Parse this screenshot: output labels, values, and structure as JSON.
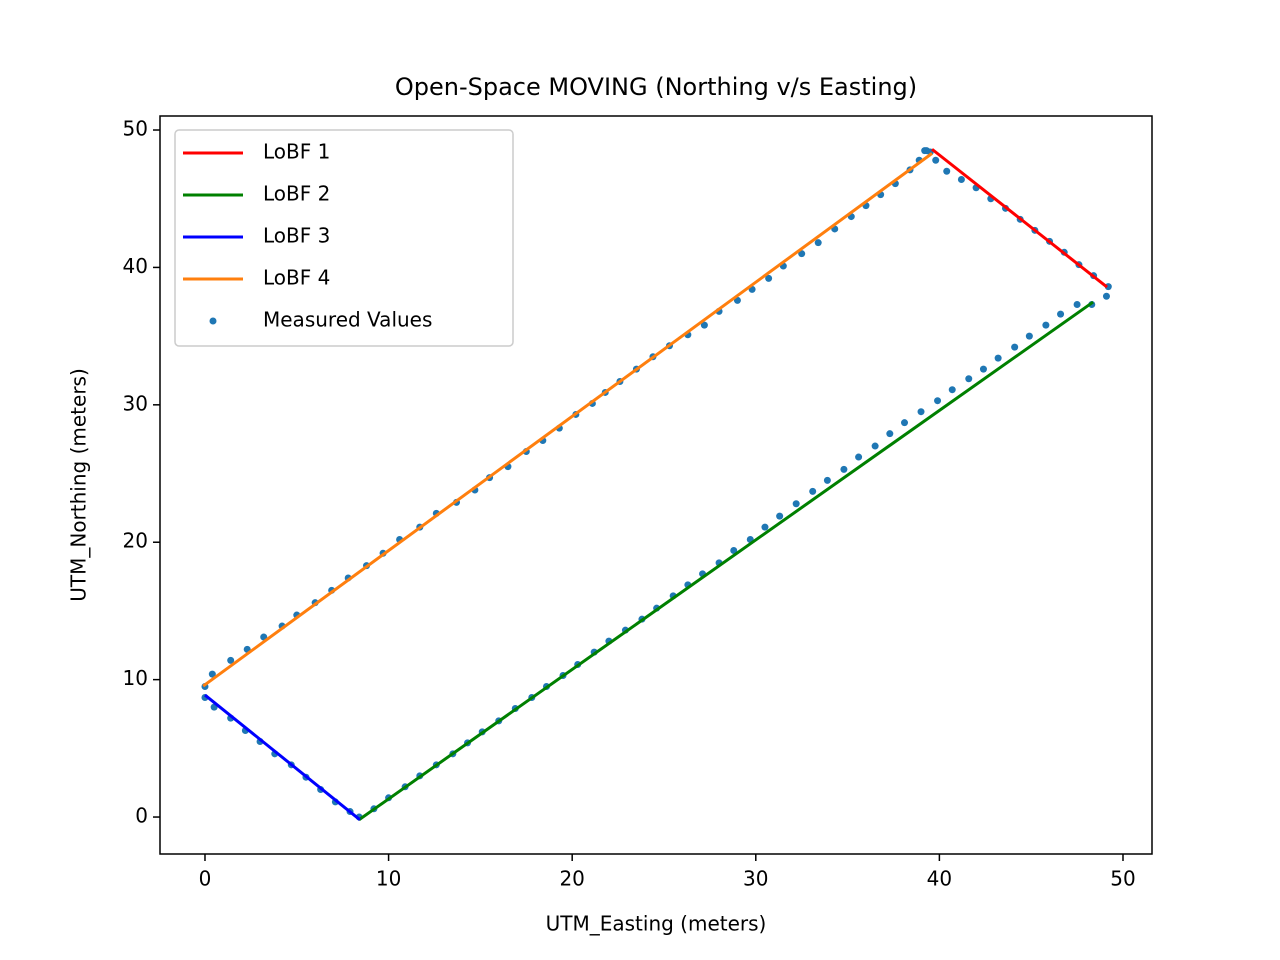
{
  "chart_data": {
    "type": "line",
    "title": "Open-Space MOVING (Northing v/s Easting)",
    "x_label": "UTM_Easting (meters)",
    "y_label": "UTM_Northing (meters)",
    "xlim": [
      -2.45,
      51.58
    ],
    "ylim": [
      -2.69,
      51.02
    ],
    "xticks": [
      0,
      10,
      20,
      30,
      40,
      50
    ],
    "yticks": [
      0,
      10,
      20,
      30,
      40,
      50
    ],
    "legend": "upper left",
    "series": [
      {
        "name": "LoBF 1",
        "type": "line",
        "color": "#ff0000",
        "x": [
          39.6,
          49.13
        ],
        "values": [
          48.6,
          38.57
        ]
      },
      {
        "name": "LoBF 2",
        "type": "line",
        "color": "#008000",
        "x": [
          8.39,
          48.37
        ],
        "values": [
          -0.2,
          37.48
        ]
      },
      {
        "name": "LoBF 3",
        "type": "line",
        "color": "#0000ff",
        "x": [
          0,
          8.44
        ],
        "values": [
          8.88,
          -0.2
        ]
      },
      {
        "name": "LoBF 4",
        "type": "line",
        "color": "#ff7f0e",
        "x": [
          -0.1,
          39.6
        ],
        "values": [
          9.53,
          48.3
        ]
      },
      {
        "name": "Measured Values",
        "type": "scatter",
        "color": "#1f77b4",
        "x": [
          0,
          0.5,
          1.4,
          2.2,
          3.0,
          3.8,
          4.7,
          5.5,
          6.3,
          7.1,
          7.9,
          8.4,
          9.2,
          10.0,
          10.9,
          11.7,
          12.6,
          13.5,
          14.3,
          15.1,
          16.0,
          16.9,
          17.8,
          18.6,
          19.5,
          20.3,
          21.2,
          22.0,
          22.9,
          23.8,
          24.6,
          25.5,
          26.3,
          27.1,
          28.0,
          28.8,
          29.7,
          30.5,
          31.3,
          32.2,
          33.1,
          33.9,
          34.8,
          35.6,
          36.5,
          37.3,
          38.1,
          39.0,
          39.9,
          40.7,
          41.6,
          42.4,
          43.2,
          44.1,
          44.9,
          45.8,
          46.6,
          47.5,
          48.3,
          49.1,
          49.2,
          48.4,
          47.6,
          46.8,
          46.0,
          45.2,
          44.4,
          43.6,
          42.8,
          42.0,
          41.2,
          40.4,
          39.8,
          39.5,
          39.2,
          39.3,
          38.9,
          38.4,
          37.6,
          36.8,
          36.0,
          35.2,
          34.3,
          33.4,
          32.5,
          31.5,
          30.7,
          29.8,
          29.0,
          28.0,
          27.2,
          26.3,
          25.3,
          24.4,
          23.5,
          22.6,
          21.8,
          21.1,
          20.2,
          19.3,
          18.4,
          17.5,
          16.5,
          15.5,
          14.7,
          13.7,
          12.6,
          11.7,
          10.6,
          9.7,
          8.8,
          7.8,
          6.9,
          6.0,
          5.0,
          4.2,
          3.2,
          2.3,
          1.4,
          0.4,
          0
        ],
        "values": [
          8.7,
          8.0,
          7.2,
          6.3,
          5.5,
          4.6,
          3.8,
          2.9,
          2.0,
          1.1,
          0.4,
          0.0,
          0.6,
          1.4,
          2.2,
          3.0,
          3.8,
          4.6,
          5.4,
          6.2,
          7.0,
          7.9,
          8.7,
          9.5,
          10.3,
          11.1,
          12.0,
          12.8,
          13.6,
          14.4,
          15.2,
          16.1,
          16.9,
          17.7,
          18.5,
          19.4,
          20.2,
          21.1,
          21.9,
          22.8,
          23.7,
          24.5,
          25.3,
          26.2,
          27.0,
          27.9,
          28.7,
          29.5,
          30.3,
          31.1,
          31.9,
          32.6,
          33.4,
          34.2,
          35.0,
          35.8,
          36.6,
          37.3,
          37.3,
          37.9,
          38.6,
          39.4,
          40.2,
          41.1,
          41.9,
          42.7,
          43.5,
          44.3,
          45.0,
          45.8,
          46.4,
          47.0,
          47.8,
          48.4,
          48.5,
          48.5,
          47.8,
          47.1,
          46.1,
          45.3,
          44.5,
          43.7,
          42.8,
          41.8,
          41.0,
          40.1,
          39.2,
          38.4,
          37.6,
          36.8,
          35.8,
          35.1,
          34.3,
          33.5,
          32.6,
          31.7,
          30.9,
          30.1,
          29.3,
          28.3,
          27.4,
          26.6,
          25.5,
          24.7,
          23.8,
          22.9,
          22.1,
          21.1,
          20.2,
          19.2,
          18.3,
          17.4,
          16.5,
          15.6,
          14.7,
          13.9,
          13.1,
          12.2,
          11.4,
          10.4,
          9.5
        ]
      }
    ]
  }
}
